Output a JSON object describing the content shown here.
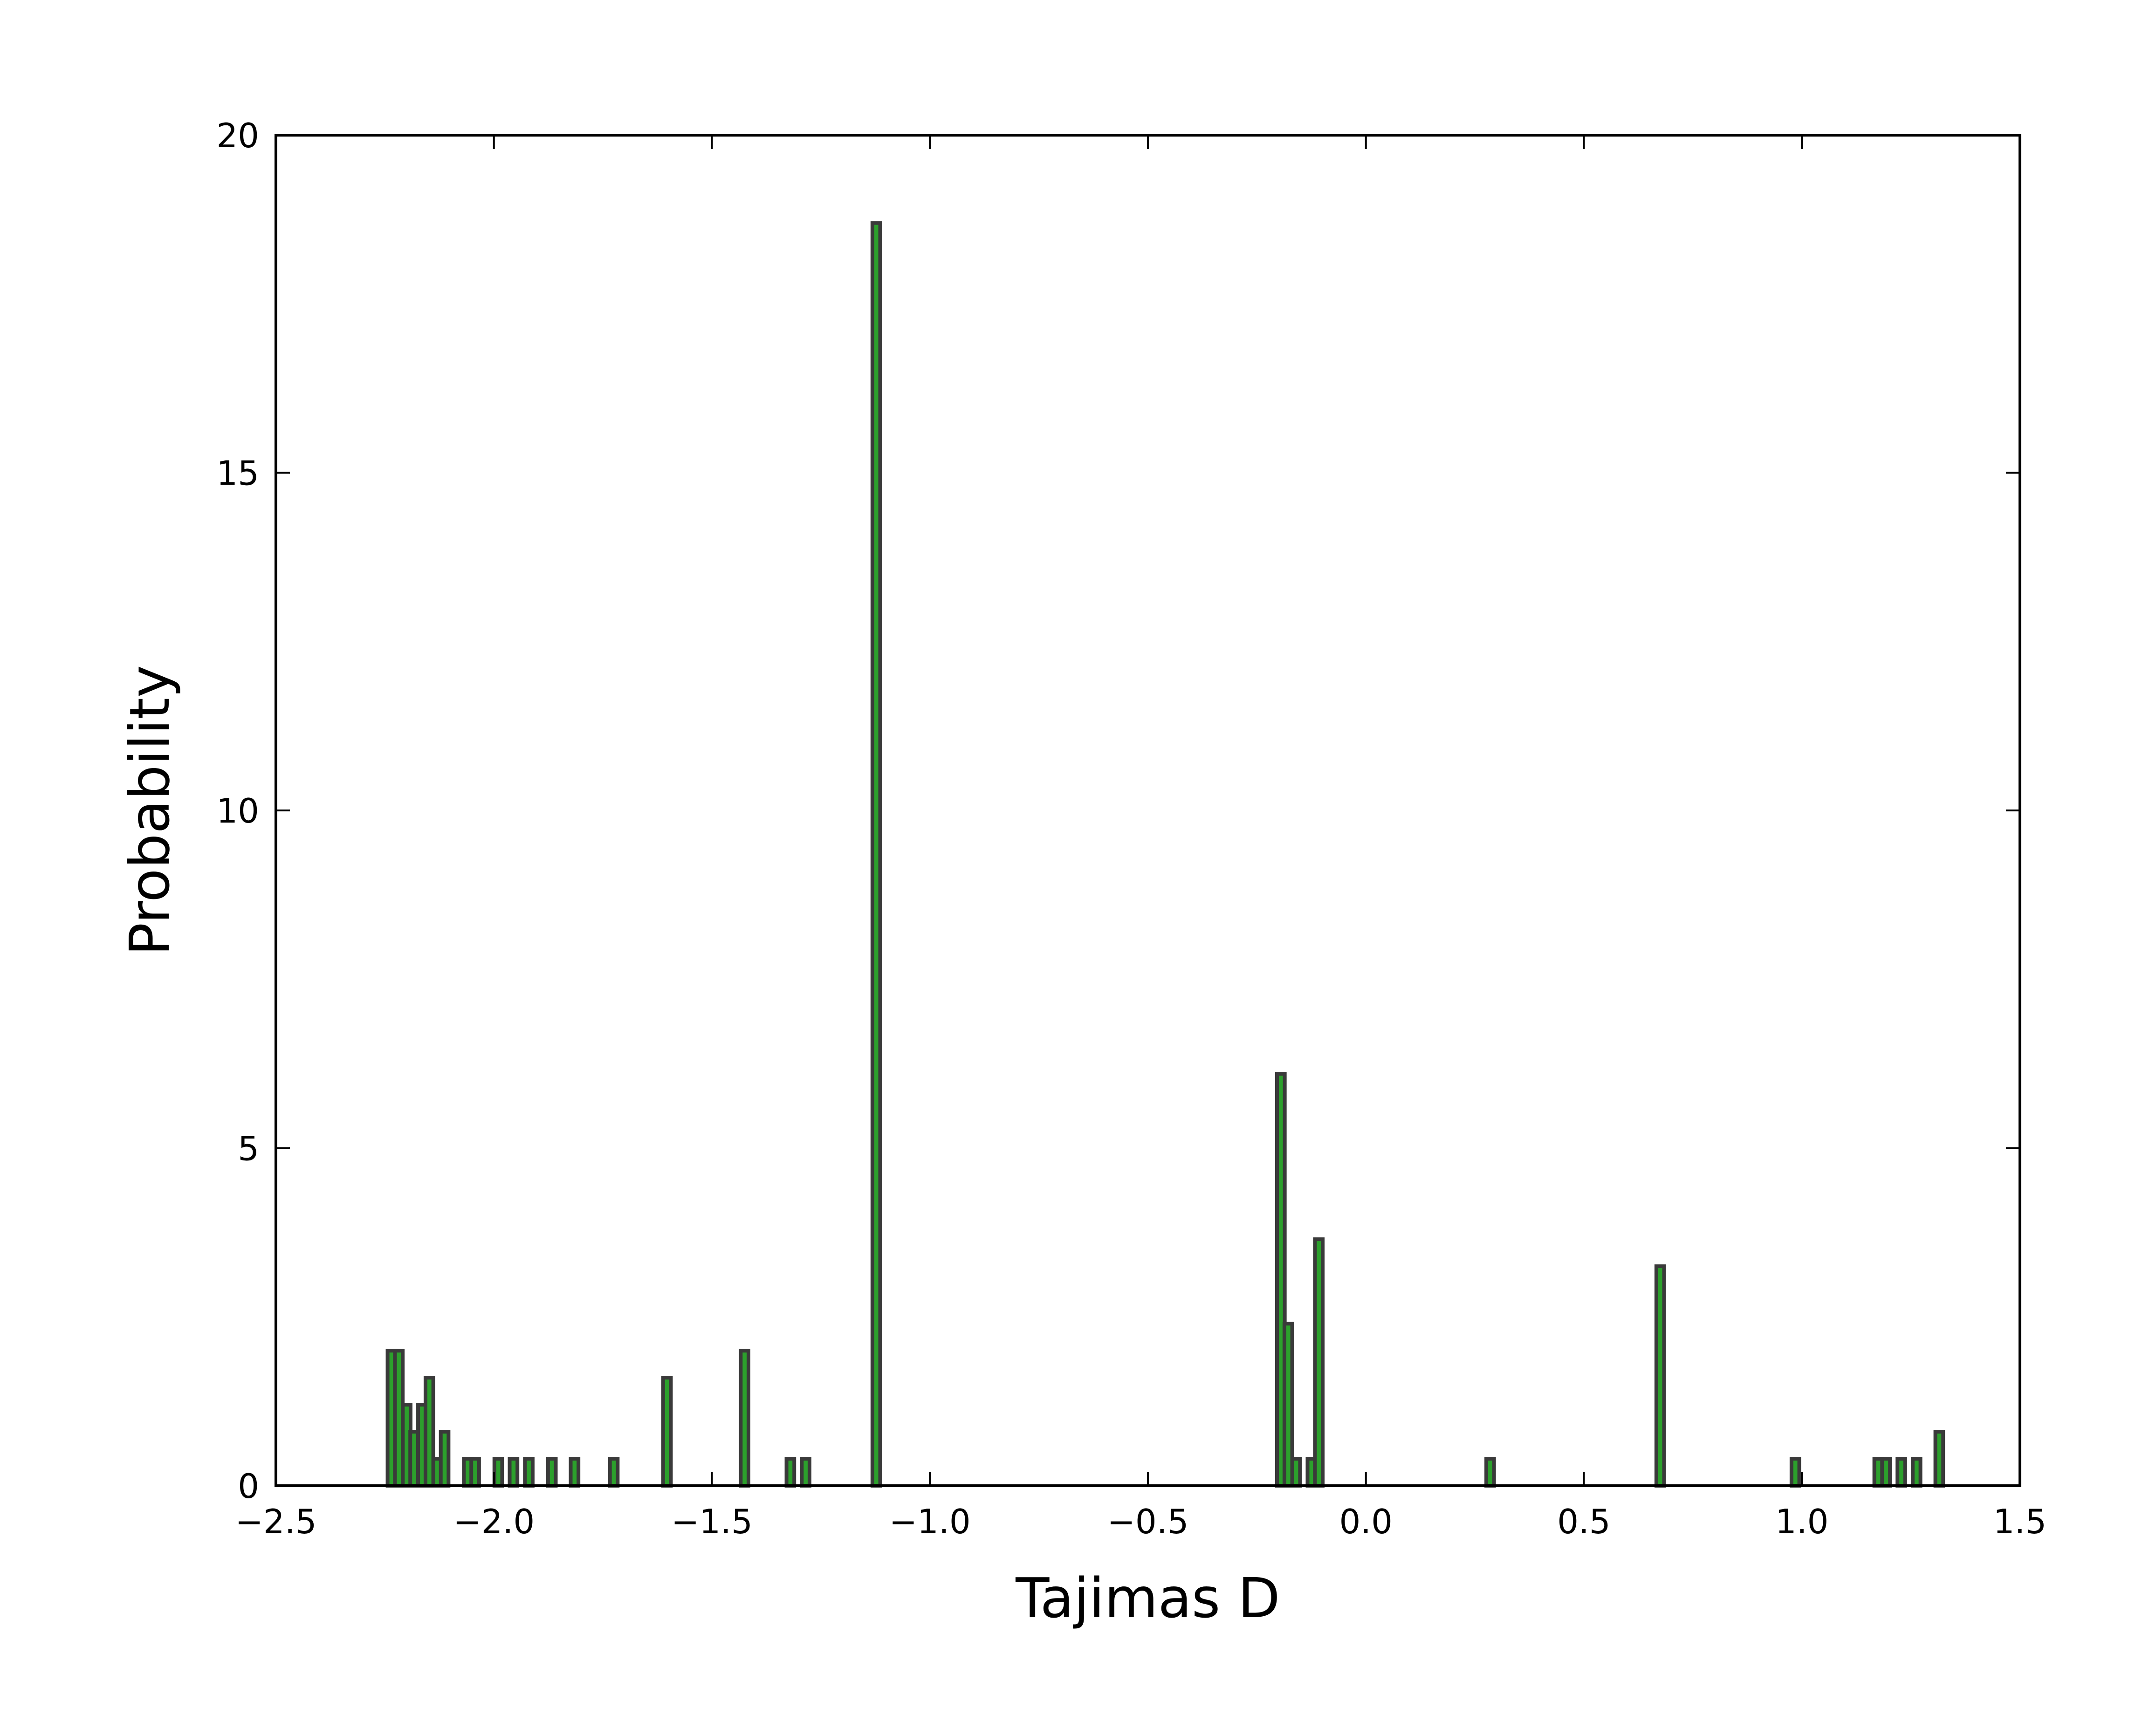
{
  "chart_data": {
    "type": "bar",
    "title": "",
    "xlabel": "Tajimas D",
    "ylabel": "Probability",
    "xlim": [
      -2.5,
      1.5
    ],
    "ylim": [
      0,
      20
    ],
    "grid": false,
    "xticks": [
      -2.5,
      -2.0,
      -1.5,
      -1.0,
      -0.5,
      0.0,
      0.5,
      1.0,
      1.5
    ],
    "xtick_labels": [
      "−2.5",
      "−2.0",
      "−1.5",
      "−1.0",
      "−0.5",
      "0.0",
      "0.5",
      "1.0",
      "1.5"
    ],
    "yticks": [
      0,
      5,
      10,
      15,
      20
    ],
    "ytick_labels": [
      "0",
      "5",
      "10",
      "15",
      "20"
    ],
    "bar_color": "#2ca02c",
    "bar_edge_color": "#3a3a3a",
    "bin_width": 0.0178,
    "bins": [
      {
        "x": -2.235,
        "y": 2.0
      },
      {
        "x": -2.218,
        "y": 2.0
      },
      {
        "x": -2.2,
        "y": 1.2
      },
      {
        "x": -2.183,
        "y": 0.8
      },
      {
        "x": -2.165,
        "y": 1.2
      },
      {
        "x": -2.148,
        "y": 1.6
      },
      {
        "x": -2.13,
        "y": 0.4
      },
      {
        "x": -2.113,
        "y": 0.8
      },
      {
        "x": -2.06,
        "y": 0.4
      },
      {
        "x": -2.043,
        "y": 0.4
      },
      {
        "x": -1.99,
        "y": 0.4
      },
      {
        "x": -1.955,
        "y": 0.4
      },
      {
        "x": -1.92,
        "y": 0.4
      },
      {
        "x": -1.867,
        "y": 0.4
      },
      {
        "x": -1.815,
        "y": 0.4
      },
      {
        "x": -1.725,
        "y": 0.4
      },
      {
        "x": -1.603,
        "y": 1.6
      },
      {
        "x": -1.425,
        "y": 2.0
      },
      {
        "x": -1.32,
        "y": 0.4
      },
      {
        "x": -1.285,
        "y": 0.4
      },
      {
        "x": -1.123,
        "y": 18.7
      },
      {
        "x": -0.195,
        "y": 6.1
      },
      {
        "x": -0.178,
        "y": 2.4
      },
      {
        "x": -0.16,
        "y": 0.4
      },
      {
        "x": -0.125,
        "y": 0.4
      },
      {
        "x": -0.108,
        "y": 3.65
      },
      {
        "x": 0.285,
        "y": 0.4
      },
      {
        "x": 0.675,
        "y": 3.25
      },
      {
        "x": 0.985,
        "y": 0.4
      },
      {
        "x": 1.175,
        "y": 0.4
      },
      {
        "x": 1.193,
        "y": 0.4
      },
      {
        "x": 1.228,
        "y": 0.4
      },
      {
        "x": 1.263,
        "y": 0.4
      },
      {
        "x": 1.315,
        "y": 0.8
      }
    ]
  }
}
